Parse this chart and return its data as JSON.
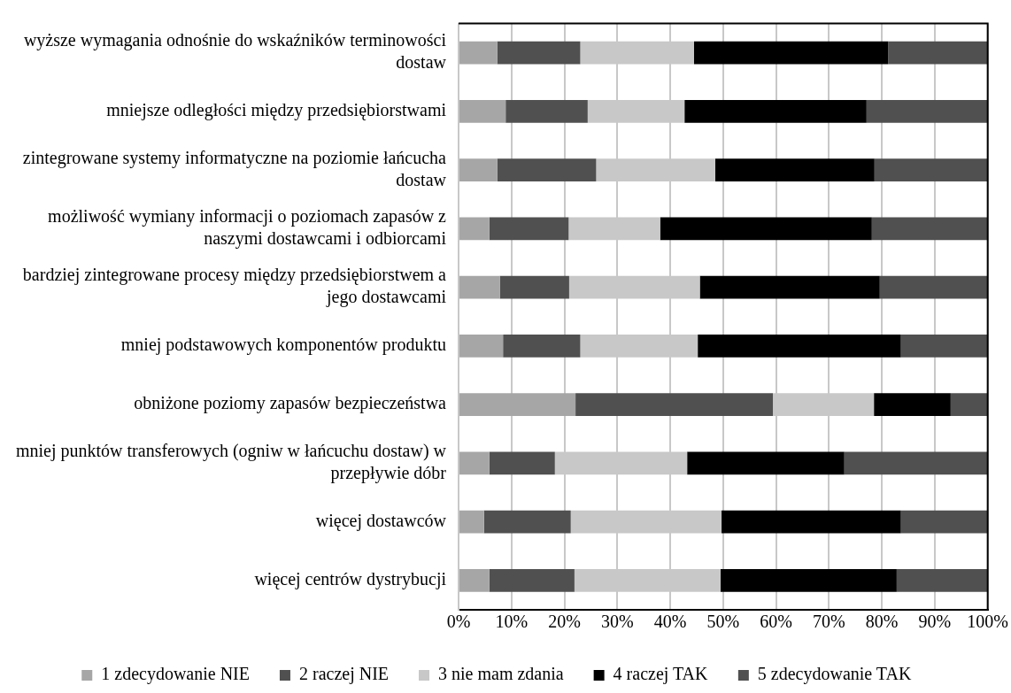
{
  "chart_data": {
    "type": "bar",
    "orientation": "horizontal",
    "stacked": true,
    "categories": [
      "wyższe wymagania odnośnie do wskaźników terminowości dostaw",
      "mniejsze odległości między przedsiębiorstwami",
      "zintegrowane systemy informatyczne na poziomie łańcucha dostaw",
      "możliwość wymiany informacji o poziomach zapasów z naszymi dostawcami i odbiorcami",
      "bardziej zintegrowane procesy między przedsiębiorstwem a jego dostawcami",
      "mniej podstawowych komponentów produktu",
      "obniżone poziomy zapasów bezpieczeństwa",
      "mniej punktów transferowych (ogniw w łańcuchu dostaw) w przepływie dóbr",
      "więcej dostawców",
      "więcej centrów dystrybucji"
    ],
    "series": [
      {
        "name": "1 zdecydowanie NIE",
        "color": "#a6a6a6",
        "values": [
          7.3,
          8.9,
          7.3,
          5.8,
          7.8,
          8.4,
          22.1,
          5.8,
          4.8,
          5.8
        ]
      },
      {
        "name": "2 raczej NIE",
        "color": "#505050",
        "values": [
          15.7,
          15.5,
          18.7,
          15.0,
          13.1,
          14.6,
          37.3,
          12.4,
          16.4,
          16.1
        ]
      },
      {
        "name": "3 nie mam zdania",
        "color": "#c8c8c8",
        "values": [
          21.5,
          18.3,
          22.5,
          17.3,
          24.7,
          22.2,
          19.1,
          25.0,
          28.5,
          27.6
        ]
      },
      {
        "name": "4 raczej TAK",
        "color": "#000000",
        "values": [
          36.7,
          34.4,
          30.1,
          40.0,
          34.0,
          38.4,
          14.5,
          29.7,
          33.9,
          33.3
        ]
      },
      {
        "name": "5 zdecydowanie TAK",
        "color": "#505050",
        "values": [
          18.8,
          22.9,
          21.4,
          21.9,
          20.4,
          16.4,
          7.0,
          27.1,
          16.4,
          17.2
        ]
      }
    ],
    "xlim": [
      0,
      100
    ],
    "xticks": [
      {
        "value": 0,
        "label": "0%"
      },
      {
        "value": 10,
        "label": "10%"
      },
      {
        "value": 20,
        "label": "20%"
      },
      {
        "value": 30,
        "label": "30%"
      },
      {
        "value": 40,
        "label": "40%"
      },
      {
        "value": 50,
        "label": "50%"
      },
      {
        "value": 60,
        "label": "60%"
      },
      {
        "value": 70,
        "label": "70%"
      },
      {
        "value": 80,
        "label": "80%"
      },
      {
        "value": 90,
        "label": "90%"
      },
      {
        "value": 100,
        "label": "100%"
      }
    ],
    "grid": "x",
    "legend": "bottom"
  }
}
